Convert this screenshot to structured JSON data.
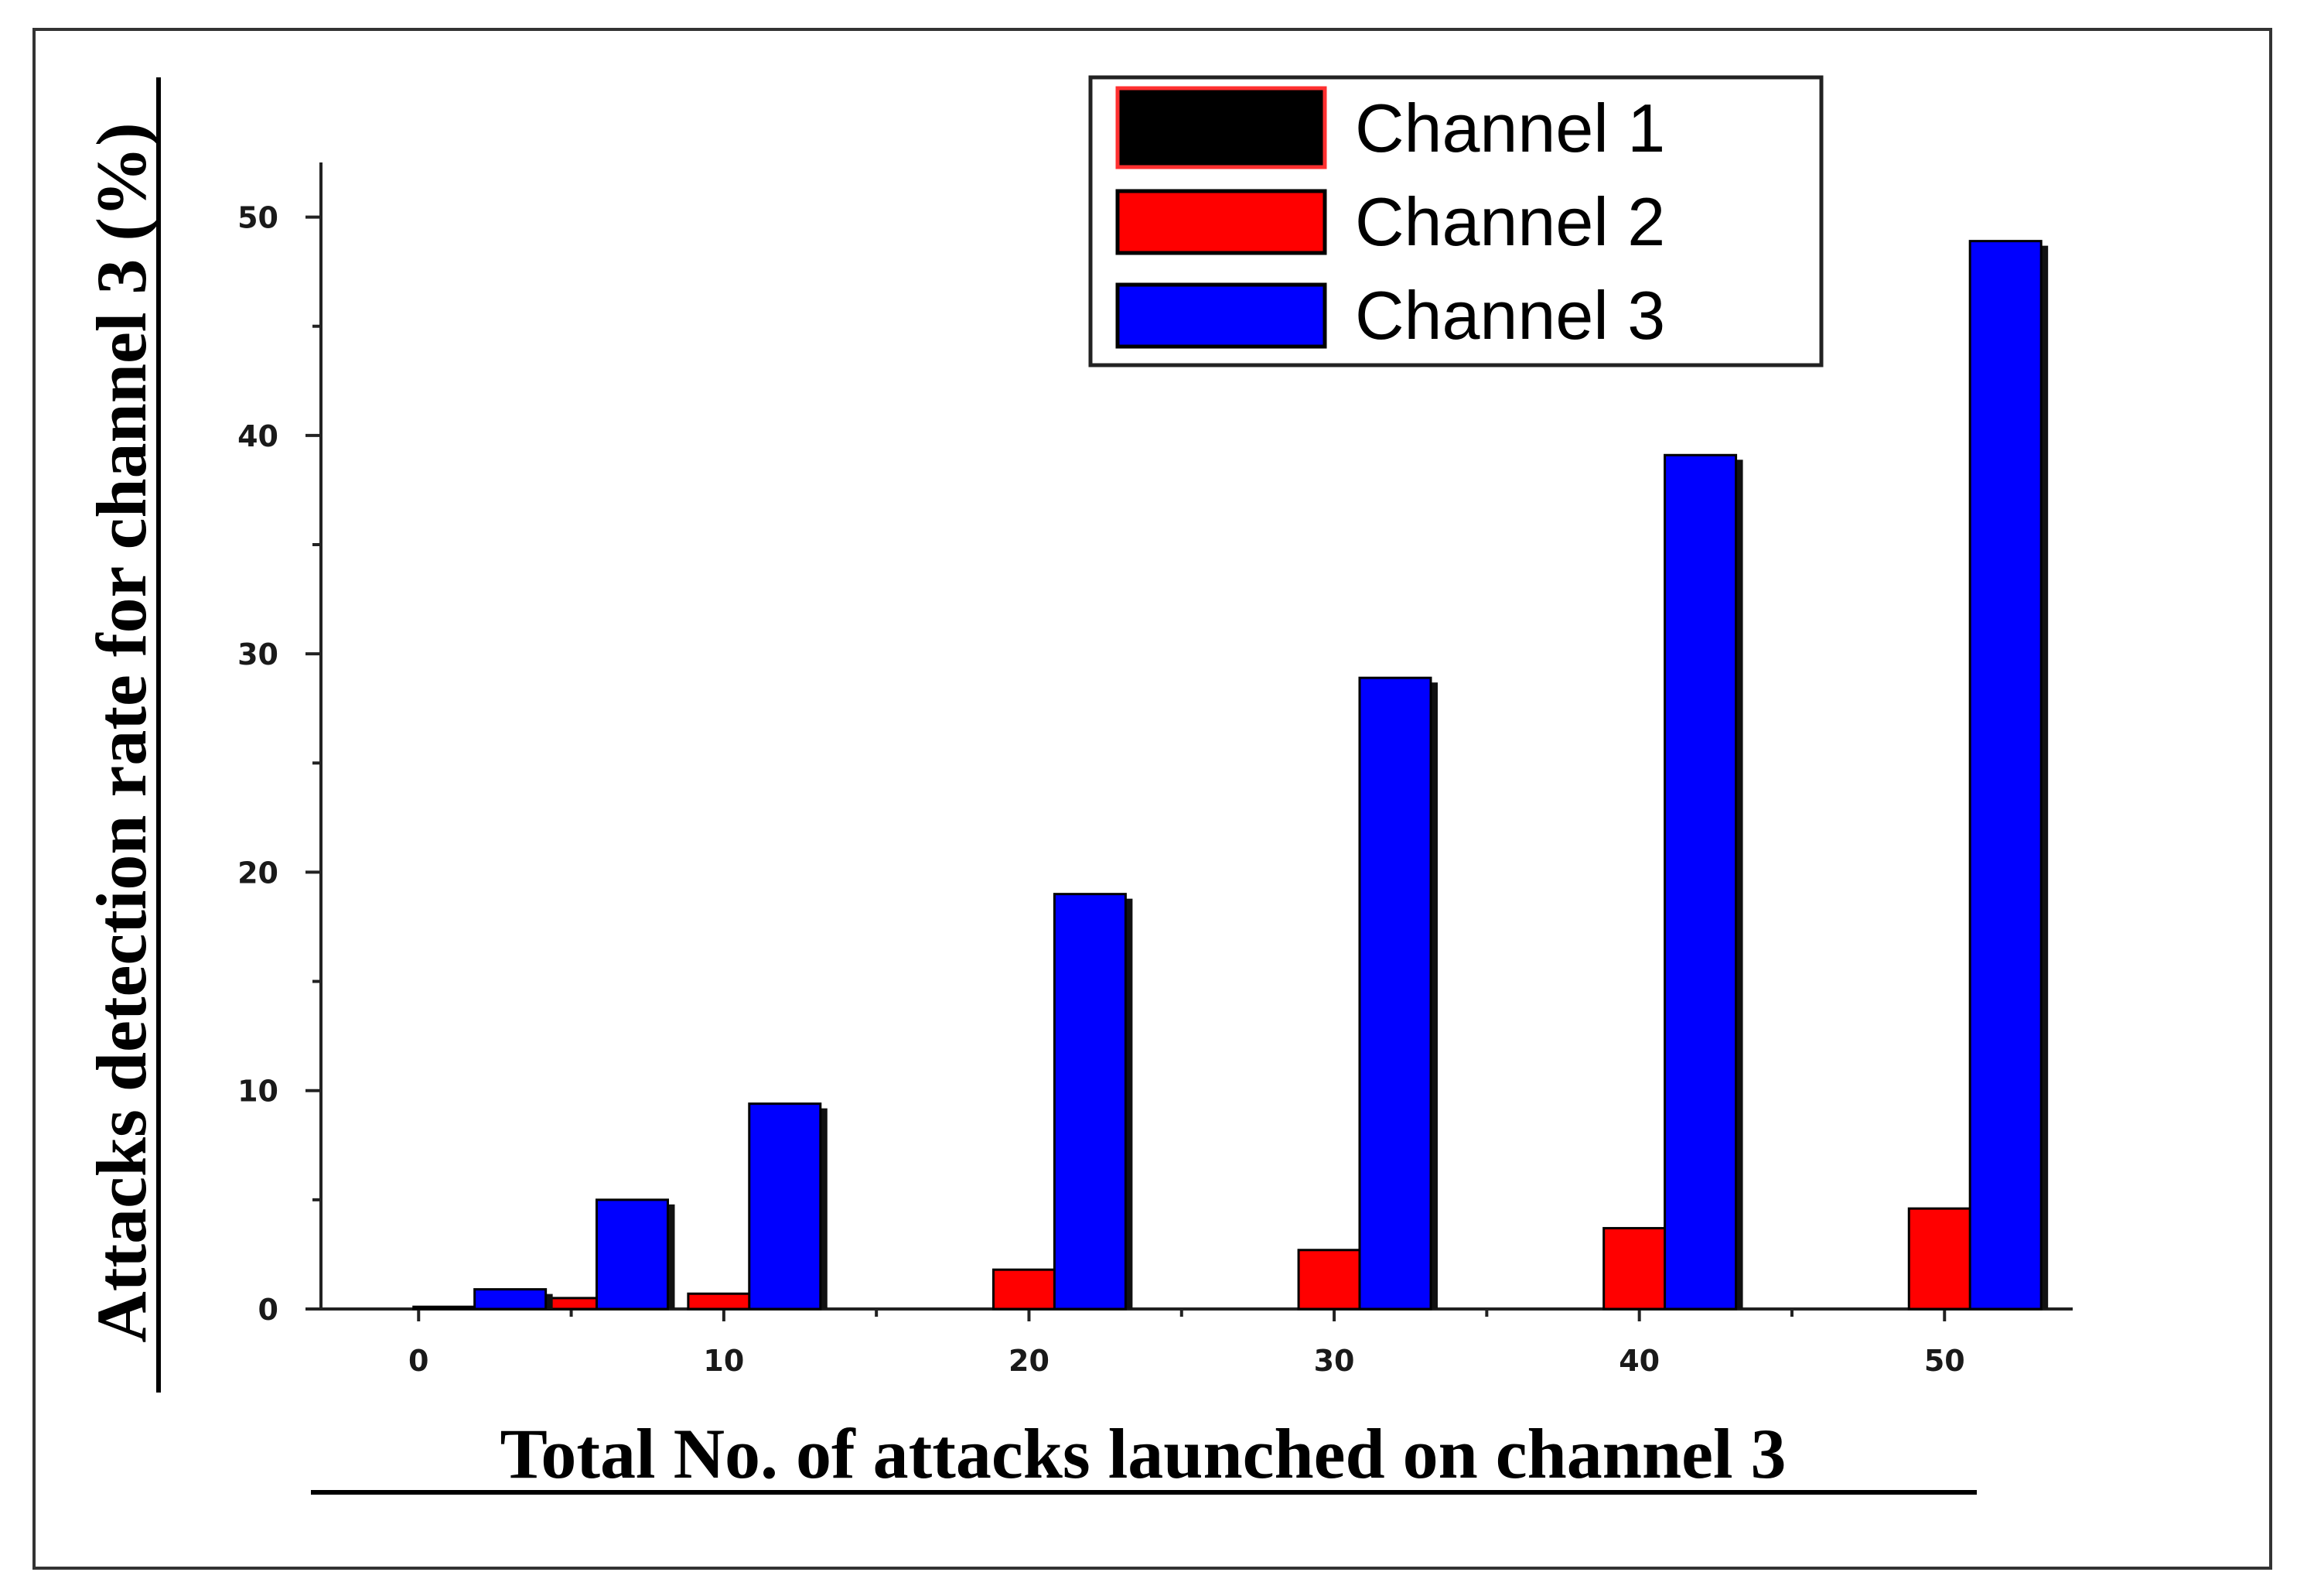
{
  "chart_data": {
    "type": "bar",
    "xlabel": "Total No. of attacks launched on channel 3",
    "ylabel": "Attacks detection rate for channel 3 (%)",
    "x_ticks": [
      0,
      10,
      20,
      30,
      40,
      50
    ],
    "y_ticks": [
      0,
      10,
      20,
      30,
      40,
      50
    ],
    "xlim": [
      -3.2,
      54.2
    ],
    "ylim": [
      0,
      52.5
    ],
    "grid": false,
    "legend_position": "top-right",
    "series": [
      {
        "name": "Channel 1",
        "color": "#000000",
        "points": [
          {
            "x": 1,
            "y": 0.1
          },
          {
            "x": 21,
            "y": 0
          },
          {
            "x": 31,
            "y": 0.1
          },
          {
            "x": 41,
            "y": 0.5
          },
          {
            "x": 51,
            "y": 0.7
          }
        ]
      },
      {
        "name": "Channel 2",
        "color": "#ff0000",
        "points": [
          {
            "x": 5,
            "y": 0.5
          },
          {
            "x": 10,
            "y": 0.7
          },
          {
            "x": 20,
            "y": 1.8
          },
          {
            "x": 30,
            "y": 2.7
          },
          {
            "x": 40,
            "y": 3.7
          },
          {
            "x": 50,
            "y": 4.6
          }
        ]
      },
      {
        "name": "Channel 3",
        "color": "#0000ff",
        "points": [
          {
            "x": 3,
            "y": 0.9
          },
          {
            "x": 7,
            "y": 5.0
          },
          {
            "x": 12,
            "y": 9.4
          },
          {
            "x": 22,
            "y": 19.0
          },
          {
            "x": 32,
            "y": 28.9
          },
          {
            "x": 42,
            "y": 39.1
          },
          {
            "x": 52,
            "y": 48.9
          }
        ]
      }
    ]
  }
}
